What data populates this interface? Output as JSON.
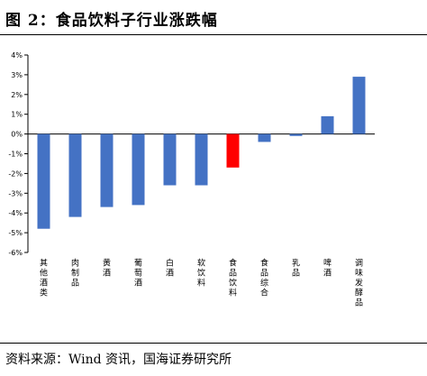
{
  "header": {
    "title": "图 2：食品饮料子行业涨跌幅"
  },
  "footer": {
    "source": "资料来源：Wind 资讯，国海证券研究所"
  },
  "chart_data": {
    "type": "bar",
    "categories": [
      "其他酒类",
      "肉制品",
      "黄酒",
      "葡萄酒",
      "白酒",
      "软饮料",
      "食品饮料",
      "食品综合",
      "乳品",
      "啤酒",
      "调味发酵品"
    ],
    "values": [
      -4.8,
      -4.2,
      -3.7,
      -3.6,
      -2.6,
      -2.6,
      -1.7,
      -0.4,
      -0.1,
      0.9,
      2.9
    ],
    "ylim": [
      -6,
      4
    ],
    "yticks": [
      4,
      3,
      2,
      1,
      0,
      -1,
      -2,
      -3,
      -4,
      -5,
      -6
    ],
    "ytick_labels": [
      "4%",
      "3%",
      "2%",
      "1%",
      "0%",
      "-1%",
      "-2%",
      "-3%",
      "-4%",
      "-5%",
      "-6%"
    ],
    "highlight_category": "食品饮料",
    "colors": {
      "bar": "#4472C4",
      "highlight": "#FF0000"
    },
    "grid": false
  }
}
